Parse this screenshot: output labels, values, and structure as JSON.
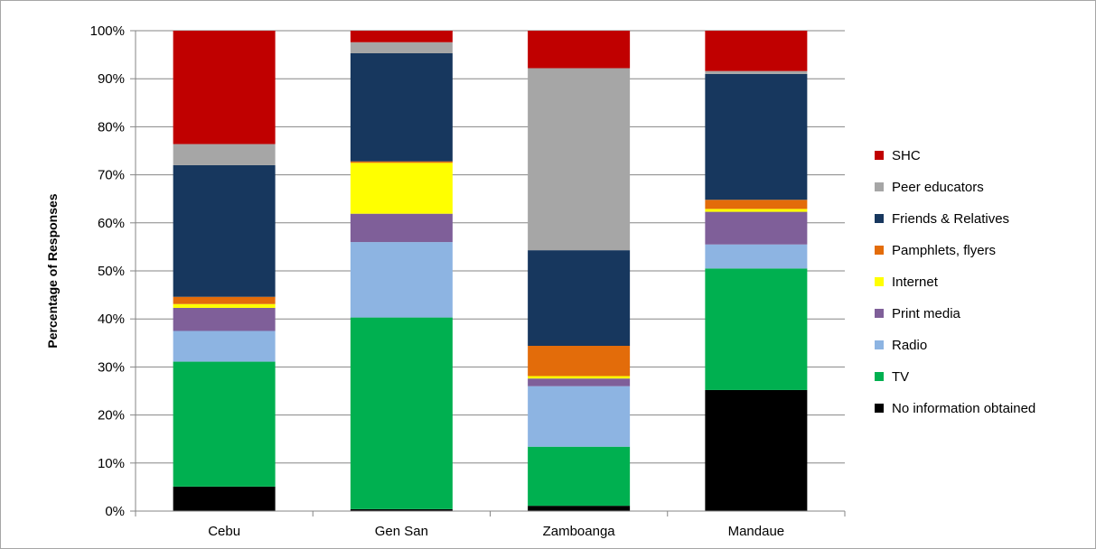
{
  "chart_data": {
    "type": "bar",
    "stacked": true,
    "categories": [
      "Cebu",
      "Gen San",
      "Zamboanga",
      "Mandaue"
    ],
    "ylabel": "Percentage of Responses",
    "xlabel": "",
    "ylim": [
      0,
      100
    ],
    "yticks": [
      "0%",
      "10%",
      "20%",
      "30%",
      "40%",
      "50%",
      "60%",
      "70%",
      "80%",
      "90%",
      "100%"
    ],
    "grid": true,
    "legend_position": "right",
    "series": [
      {
        "name": "No information obtained",
        "color": "#000000",
        "values": [
          5.1,
          0.4,
          1.1,
          25.2
        ]
      },
      {
        "name": "TV",
        "color": "#00b050",
        "values": [
          26.0,
          39.9,
          12.3,
          25.3
        ]
      },
      {
        "name": "Radio",
        "color": "#8db4e2",
        "values": [
          6.4,
          15.7,
          12.6,
          5.0
        ]
      },
      {
        "name": "Print media",
        "color": "#7f5f99",
        "values": [
          4.8,
          5.9,
          1.6,
          6.8
        ]
      },
      {
        "name": "Internet",
        "color": "#ffff00",
        "values": [
          0.8,
          10.6,
          0.5,
          0.6
        ]
      },
      {
        "name": "Pamphlets, flyers",
        "color": "#e36c0a",
        "values": [
          1.5,
          0.3,
          6.3,
          1.9
        ]
      },
      {
        "name": "Friends & Relatives",
        "color": "#17375e",
        "values": [
          27.4,
          22.5,
          19.9,
          26.2
        ]
      },
      {
        "name": "Peer educators",
        "color": "#a6a6a6",
        "values": [
          4.4,
          2.3,
          37.9,
          0.6
        ]
      },
      {
        "name": "SHC",
        "color": "#c00000",
        "values": [
          23.6,
          2.4,
          7.8,
          8.4
        ]
      }
    ]
  }
}
